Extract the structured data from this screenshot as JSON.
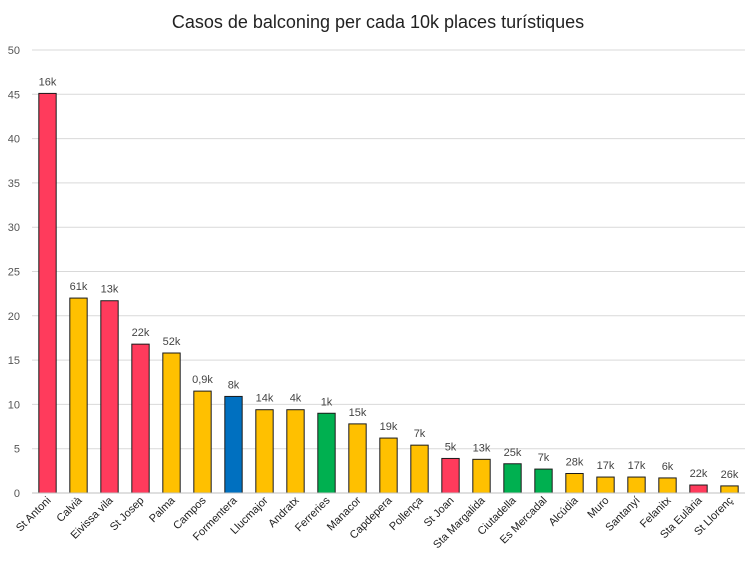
{
  "chart_data": {
    "type": "bar",
    "title": "Casos de balconing per cada 10k places turístiques",
    "xlabel": "",
    "ylabel": "",
    "ylim": [
      0,
      50
    ],
    "yticks": [
      0,
      5,
      10,
      15,
      20,
      25,
      30,
      35,
      40,
      45,
      50
    ],
    "grid": true,
    "legend": "none",
    "categories": [
      "St Antoni",
      "Calvià",
      "Eivissa vila",
      "St Josep",
      "Palma",
      "Campos",
      "Formentera",
      "Llucmajor",
      "Andratx",
      "Ferreries",
      "Manacor",
      "Capdepera",
      "Pollença",
      "St Joan",
      "Sta Margalida",
      "Ciutadella",
      "Es Mercadal",
      "Alcúdia",
      "Muro",
      "Santanyí",
      "Felanitx",
      "Sta Eulària",
      "St Llorenç"
    ],
    "values": [
      45.1,
      22.0,
      21.7,
      16.8,
      15.8,
      11.5,
      10.9,
      9.4,
      9.4,
      9.0,
      7.8,
      6.2,
      5.4,
      3.9,
      3.8,
      3.3,
      2.7,
      2.2,
      1.8,
      1.8,
      1.7,
      0.9,
      0.8
    ],
    "data_labels": [
      "16k",
      "61k",
      "13k",
      "22k",
      "52k",
      "0,9k",
      "8k",
      "14k",
      "4k",
      "1k",
      "15k",
      "19k",
      "7k",
      "5k",
      "13k",
      "25k",
      "7k",
      "28k",
      "17k",
      "17k",
      "6k",
      "22k",
      "26k"
    ],
    "bar_colors": [
      "#ff3b5c",
      "#ffc000",
      "#ff3b5c",
      "#ff3b5c",
      "#ffc000",
      "#ffc000",
      "#0070c0",
      "#ffc000",
      "#ffc000",
      "#00b050",
      "#ffc000",
      "#ffc000",
      "#ffc000",
      "#ff3b5c",
      "#ffc000",
      "#00b050",
      "#00b050",
      "#ffc000",
      "#ffc000",
      "#ffc000",
      "#ffc000",
      "#ff3b5c",
      "#ffc000"
    ]
  }
}
